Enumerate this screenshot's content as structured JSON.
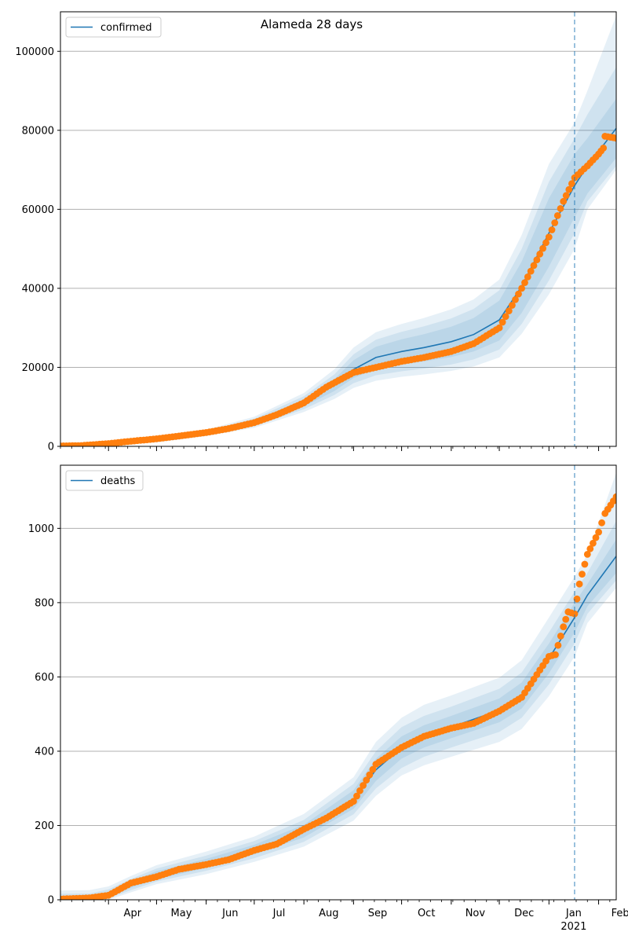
{
  "figure_title": "Alameda 28 days",
  "colors": {
    "model_line": "#1f77b4",
    "band": "#1f77b4",
    "observed": "#ff7f0e",
    "grid": "#b0b0b0",
    "cutoff": "#1f77b4"
  },
  "chart_data": [
    {
      "type": "line",
      "legend_entry": "confirmed",
      "legend_position": "top-left",
      "grid": "y",
      "xlim": [
        "2020-03-02",
        "2021-02-12"
      ],
      "ylim": [
        0,
        110000
      ],
      "yticks": [
        0,
        20000,
        40000,
        60000,
        80000,
        100000
      ],
      "ytick_labels": [
        "0",
        "20000",
        "40000",
        "60000",
        "80000",
        "100000"
      ],
      "cutoff_date": "2021-01-17",
      "model": {
        "x": [
          "2020-03-02",
          "2020-04-01",
          "2020-05-01",
          "2020-06-01",
          "2020-07-01",
          "2020-08-01",
          "2020-08-20",
          "2020-09-01",
          "2020-09-15",
          "2020-10-01",
          "2020-10-15",
          "2020-11-01",
          "2020-11-15",
          "2020-12-01",
          "2020-12-15",
          "2021-01-01",
          "2021-01-17",
          "2021-01-25",
          "2021-02-12"
        ],
        "y": [
          0,
          500,
          1500,
          3300,
          6000,
          11000,
          15500,
          19500,
          22500,
          24000,
          25000,
          26500,
          28300,
          32000,
          40500,
          54000,
          66000,
          71000,
          80500
        ]
      },
      "uncertainty_bands": [
        {
          "level": "inner",
          "lower": [
            0,
            400,
            1300,
            3000,
            5500,
            10100,
            14000,
            17300,
            19600,
            20700,
            21500,
            22600,
            24000,
            26800,
            33800,
            45500,
            58000,
            64000,
            73000
          ],
          "upper": [
            0,
            600,
            1700,
            3600,
            6500,
            11900,
            17000,
            21800,
            25200,
            27100,
            28400,
            30300,
            32500,
            36900,
            46800,
            62800,
            74000,
            78000,
            88000
          ]
        },
        {
          "level": "middle",
          "lower": [
            0,
            330,
            1150,
            2800,
            5100,
            9400,
            13000,
            16000,
            18000,
            19000,
            19700,
            20700,
            22000,
            24500,
            31000,
            42000,
            54000,
            62000,
            71000
          ],
          "upper": [
            0,
            700,
            1900,
            3900,
            7000,
            12700,
            18200,
            23300,
            27000,
            29000,
            30400,
            32400,
            34800,
            39500,
            50000,
            67000,
            78000,
            84000,
            96000
          ]
        },
        {
          "level": "outer",
          "lower": [
            0,
            250,
            1000,
            2600,
            4700,
            8700,
            12000,
            14800,
            16600,
            17600,
            18200,
            19100,
            20200,
            22500,
            28500,
            38500,
            50000,
            60000,
            70000
          ],
          "upper": [
            0,
            800,
            2100,
            4200,
            7500,
            13500,
            19500,
            25000,
            28900,
            31000,
            32500,
            34700,
            37200,
            42200,
            53500,
            71500,
            82000,
            90000,
            109000
          ]
        }
      ],
      "observed": {
        "x": [
          "2020-03-02",
          "2020-03-15",
          "2020-04-01",
          "2020-04-15",
          "2020-05-01",
          "2020-05-15",
          "2020-06-01",
          "2020-06-15",
          "2020-07-01",
          "2020-07-15",
          "2020-08-01",
          "2020-08-15",
          "2020-09-01",
          "2020-09-15",
          "2020-10-01",
          "2020-10-15",
          "2020-11-01",
          "2020-11-15",
          "2020-12-01",
          "2020-12-15",
          "2021-01-01",
          "2021-01-10",
          "2021-01-17",
          "2021-01-25",
          "2021-02-01",
          "2021-02-04",
          "2021-02-05",
          "2021-02-12"
        ],
        "y": [
          100,
          200,
          700,
          1300,
          1900,
          2600,
          3500,
          4500,
          6000,
          8000,
          11000,
          15000,
          18700,
          20000,
          21500,
          22500,
          24000,
          26000,
          30000,
          40000,
          53000,
          62000,
          68000,
          71000,
          74000,
          75500,
          78500,
          78000
        ]
      }
    },
    {
      "type": "line",
      "legend_entry": "deaths",
      "legend_position": "top-left",
      "grid": "y",
      "xlim": [
        "2020-03-02",
        "2021-02-12"
      ],
      "ylim": [
        0,
        1170
      ],
      "yticks": [
        0,
        200,
        400,
        600,
        800,
        1000
      ],
      "ytick_labels": [
        "0",
        "200",
        "400",
        "600",
        "800",
        "1000"
      ],
      "cutoff_date": "2021-01-17",
      "xtick_labels": [
        {
          "date": "2020-04-01",
          "label": "Apr"
        },
        {
          "date": "2020-05-01",
          "label": "May"
        },
        {
          "date": "2020-06-01",
          "label": "Jun"
        },
        {
          "date": "2020-07-01",
          "label": "Jul"
        },
        {
          "date": "2020-08-01",
          "label": "Aug"
        },
        {
          "date": "2020-09-01",
          "label": "Sep"
        },
        {
          "date": "2020-10-01",
          "label": "Oct"
        },
        {
          "date": "2020-11-01",
          "label": "Nov"
        },
        {
          "date": "2020-12-01",
          "label": "Dec"
        },
        {
          "date": "2021-01-01",
          "label": "Jan"
        },
        {
          "date": "2021-02-01",
          "label": "Feb"
        }
      ],
      "year_label": "2021",
      "model": {
        "x": [
          "2020-03-02",
          "2020-03-20",
          "2020-04-01",
          "2020-04-15",
          "2020-05-01",
          "2020-06-01",
          "2020-07-01",
          "2020-08-01",
          "2020-09-01",
          "2020-09-15",
          "2020-10-01",
          "2020-10-15",
          "2020-11-01",
          "2020-12-01",
          "2020-12-15",
          "2021-01-01",
          "2021-01-17",
          "2021-01-25",
          "2021-02-12"
        ],
        "y": [
          0,
          3,
          15,
          40,
          65,
          98,
          135,
          185,
          270,
          350,
          410,
          440,
          465,
          510,
          550,
          650,
          760,
          820,
          925
        ]
      },
      "uncertainty_bands": [
        {
          "level": "inner",
          "lower": [
            0,
            0,
            8,
            32,
            55,
            86,
            122,
            168,
            245,
            320,
            380,
            410,
            435,
            478,
            515,
            610,
            720,
            790,
            880
          ],
          "upper": [
            10,
            11,
            22,
            50,
            77,
            110,
            148,
            202,
            295,
            380,
            440,
            470,
            495,
            542,
            585,
            690,
            800,
            850,
            970
          ]
        },
        {
          "level": "middle",
          "lower": [
            0,
            0,
            4,
            26,
            49,
            78,
            112,
            156,
            230,
            300,
            355,
            385,
            410,
            452,
            490,
            580,
            690,
            770,
            860
          ],
          "upper": [
            16,
            17,
            28,
            56,
            84,
            119,
            158,
            215,
            312,
            400,
            465,
            495,
            520,
            568,
            612,
            720,
            830,
            880,
            1020
          ]
        },
        {
          "level": "outer",
          "lower": [
            0,
            0,
            0,
            20,
            42,
            69,
            102,
            143,
            213,
            280,
            335,
            362,
            385,
            425,
            460,
            548,
            655,
            745,
            840
          ],
          "upper": [
            25,
            26,
            36,
            64,
            93,
            130,
            170,
            231,
            330,
            425,
            490,
            525,
            550,
            598,
            645,
            760,
            870,
            930,
            1150
          ]
        }
      ],
      "observed": {
        "x": [
          "2020-03-02",
          "2020-03-20",
          "2020-04-01",
          "2020-04-15",
          "2020-05-01",
          "2020-05-15",
          "2020-06-01",
          "2020-06-15",
          "2020-07-01",
          "2020-07-15",
          "2020-08-01",
          "2020-08-15",
          "2020-09-01",
          "2020-09-15",
          "2020-10-01",
          "2020-10-15",
          "2020-11-01",
          "2020-11-15",
          "2020-12-01",
          "2020-12-15",
          "2021-01-01",
          "2021-01-05",
          "2021-01-10",
          "2021-01-13",
          "2021-01-17",
          "2021-01-20",
          "2021-01-25",
          "2021-02-01",
          "2021-02-05",
          "2021-02-12"
        ],
        "y": [
          2,
          5,
          12,
          45,
          62,
          82,
          95,
          108,
          133,
          150,
          190,
          220,
          265,
          365,
          410,
          440,
          462,
          475,
          508,
          545,
          655,
          660,
          735,
          775,
          770,
          850,
          930,
          990,
          1040,
          1085
        ]
      }
    }
  ]
}
